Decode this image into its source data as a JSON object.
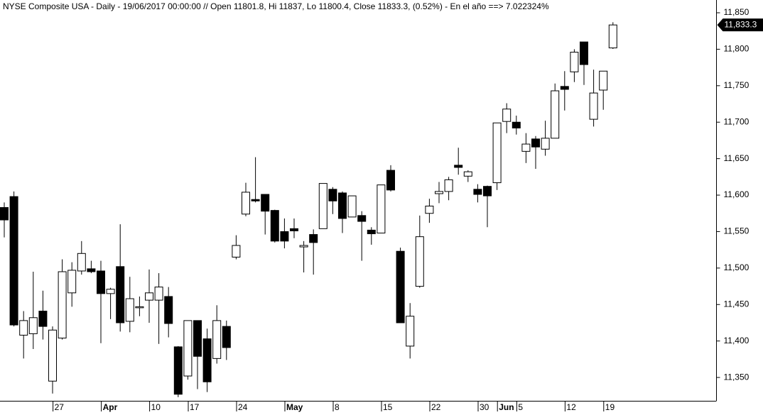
{
  "chart_data": {
    "type": "candlestick",
    "title": "NYSE Composite USA - Daily - 19/06/2017 00:00:00 // Open 11801.8, Hi 11837, Lo 11800.4, Close 11833.3, (0.52%) - En el año ==> 7.022324%",
    "categories": [
      null,
      null,
      null,
      null,
      null,
      null,
      "27",
      null,
      null,
      null,
      null,
      "Apr",
      null,
      null,
      null,
      null,
      "10",
      null,
      null,
      null,
      "17",
      null,
      null,
      null,
      null,
      "24",
      null,
      null,
      null,
      null,
      "May",
      null,
      null,
      null,
      null,
      "8",
      null,
      null,
      null,
      null,
      "15",
      null,
      null,
      null,
      null,
      "22",
      null,
      null,
      null,
      null,
      "30",
      null,
      "Jun",
      null,
      "5",
      null,
      null,
      null,
      null,
      "12",
      null,
      null,
      null,
      "19"
    ],
    "open": [
      11583,
      11598,
      11408,
      11410,
      11441,
      11345,
      11404,
      11466,
      11496,
      11499,
      11496,
      11465,
      11502,
      11427,
      11446,
      11456,
      11456,
      11461,
      11392,
      11352,
      11428,
      11403,
      11376,
      11420,
      11515,
      11574,
      11594,
      11601,
      11579,
      11550,
      11554,
      11529,
      11546,
      11554,
      11608,
      11603,
      11570,
      11572,
      11552,
      11548,
      11634,
      11523,
      11393,
      11475,
      11575,
      11602,
      11605,
      11641,
      11626,
      11608,
      11612,
      11617,
      11701,
      11700,
      11660,
      11677,
      11663,
      11678,
      11749,
      11769,
      11810,
      11704,
      11744,
      11801.8
    ],
    "high": [
      11590,
      11605,
      11441,
      11495,
      11469,
      11420,
      11512,
      11508,
      11537,
      11510,
      11510,
      11473,
      11560,
      11488,
      11461,
      11498,
      11493,
      11474,
      11393,
      11428,
      11428,
      11417,
      11449,
      11428,
      11545,
      11617,
      11652,
      11601,
      11580,
      11568,
      11568,
      11537,
      11553,
      11616,
      11611,
      11605,
      11599,
      11578,
      11556,
      11614,
      11641,
      11528,
      11452,
      11572,
      11595,
      11618,
      11625,
      11665,
      11634,
      11615,
      11613,
      11699,
      11726,
      11709,
      11685,
      11681,
      11702,
      11753,
      11770,
      11800,
      11810,
      11772,
      11770,
      11837
    ],
    "low": [
      11542,
      11420,
      11376,
      11389,
      11402,
      11328,
      11402,
      11447,
      11491,
      11493,
      11397,
      11430,
      11413,
      11412,
      11434,
      11425,
      11396,
      11405,
      11323,
      11347,
      11334,
      11330,
      11369,
      11374,
      11512,
      11571,
      11590,
      11546,
      11535,
      11527,
      11541,
      11494,
      11491,
      11554,
      11574,
      11548,
      11570,
      11510,
      11532,
      11548,
      11605,
      11425,
      11376,
      11473,
      11562,
      11589,
      11593,
      11628,
      11618,
      11590,
      11556,
      11607,
      11685,
      11683,
      11644,
      11636,
      11654,
      11678,
      11716,
      11755,
      11751,
      11694,
      11717,
      11800.4
    ],
    "close": [
      11566,
      11422,
      11428,
      11432,
      11420,
      11415,
      11495,
      11497,
      11520,
      11495,
      11465,
      11471,
      11425,
      11458,
      11447,
      11466,
      11474,
      11424,
      11327,
      11428,
      11379,
      11344,
      11428,
      11391,
      11531,
      11604,
      11592,
      11578,
      11537,
      11537,
      11551,
      11531,
      11535,
      11616,
      11592,
      11568,
      11599,
      11564,
      11547,
      11614,
      11607,
      11425,
      11434,
      11543,
      11585,
      11605,
      11621,
      11638,
      11632,
      11601,
      11599,
      11699,
      11718,
      11692,
      11670,
      11666,
      11678,
      11743,
      11745,
      11796,
      11779,
      11740,
      11770,
      11833.3
    ],
    "up_color": "#ffffff",
    "down_color": "#000000",
    "ylim": [
      11318,
      11867.5
    ],
    "yticks": [
      {
        "value": 11350,
        "label": "11,350"
      },
      {
        "value": 11400,
        "label": "11,400"
      },
      {
        "value": 11450,
        "label": "11,450"
      },
      {
        "value": 11500,
        "label": "11,500"
      },
      {
        "value": 11550,
        "label": "11,550"
      },
      {
        "value": 11600,
        "label": "11,600"
      },
      {
        "value": 11650,
        "label": "11,650"
      },
      {
        "value": 11700,
        "label": "11,700"
      },
      {
        "value": 11750,
        "label": "11,750"
      },
      {
        "value": 11800,
        "label": "11,800"
      },
      {
        "value": 11850,
        "label": "11,850"
      }
    ],
    "last_price": {
      "value": 11833.3,
      "label": "11,833.3"
    },
    "grid": false
  }
}
